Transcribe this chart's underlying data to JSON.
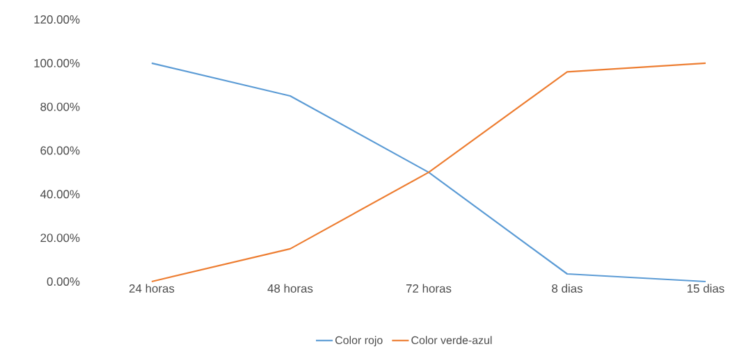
{
  "chart_data": {
    "type": "line",
    "categories": [
      "24 horas",
      "48 horas",
      "72 horas",
      "8 dias",
      "15 dias"
    ],
    "series": [
      {
        "name": "Color rojo",
        "color": "#5b9bd5",
        "values": [
          100,
          85,
          50,
          3.5,
          0
        ]
      },
      {
        "name": "Color verde-azul",
        "color": "#ed7d31",
        "values": [
          0,
          15,
          50,
          96,
          100
        ]
      }
    ],
    "ylim": [
      0,
      120
    ],
    "yticks": [
      {
        "value": 0,
        "label": "0.00%"
      },
      {
        "value": 20,
        "label": "20.00%"
      },
      {
        "value": 40,
        "label": "40.00%"
      },
      {
        "value": 60,
        "label": "60.00%"
      },
      {
        "value": 80,
        "label": "80.00%"
      },
      {
        "value": 100,
        "label": "100.00%"
      },
      {
        "value": 120,
        "label": "120.00%"
      }
    ],
    "legend": "bottom",
    "marker": "none",
    "line_style": "solid"
  }
}
